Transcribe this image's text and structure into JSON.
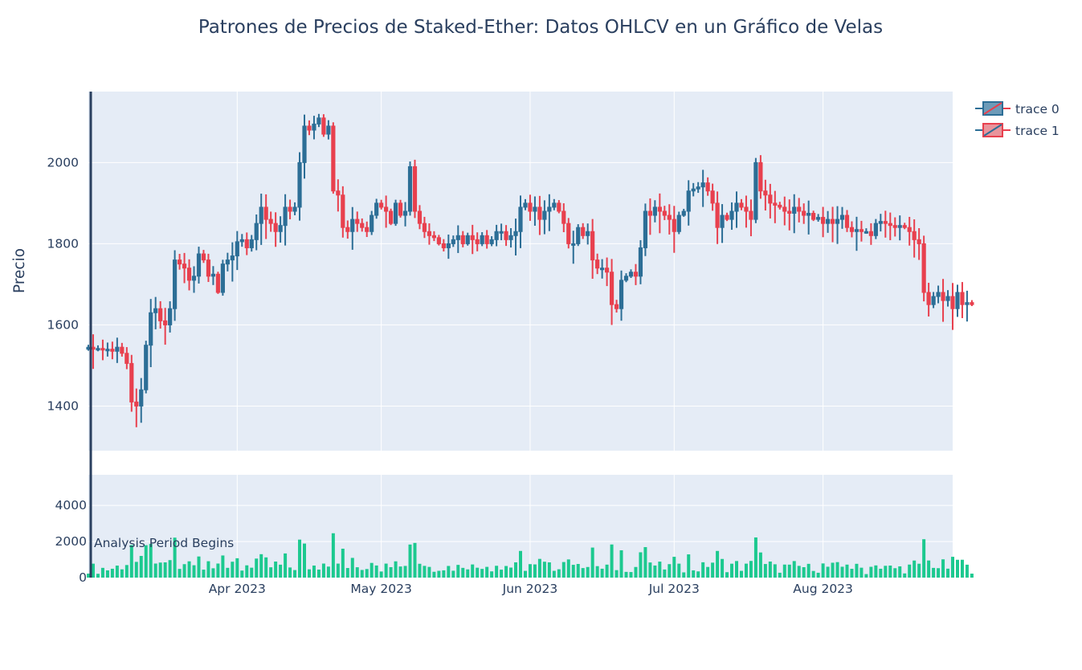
{
  "title": "Patrones de Precios de Staked-Ether: Datos OHLCV en un Gráfico de Velas",
  "ylabel": "Precio",
  "legend": [
    {
      "label": "trace 0"
    },
    {
      "label": "trace 1"
    }
  ],
  "annotation": "Analysis Period Begins",
  "colors": {
    "increasing": "#2c6e96",
    "decreasing": "#e8404e",
    "volume": "#1cc98f",
    "plot_bg": "#e5ecf6",
    "grid": "#ffffff",
    "marker_line": "#2a3f5f"
  },
  "chart_data": {
    "type": "candlestick",
    "x_range": [
      "2023-03-01",
      "2023-08-28"
    ],
    "price_yrange": [
      1290,
      2175
    ],
    "volume_yrange": [
      0,
      5700
    ],
    "price_ticks": [
      1400,
      1600,
      1800,
      2000
    ],
    "price_tick_labels": [
      "1400",
      "1600",
      "1800",
      "2000"
    ],
    "volume_ticks": [
      0,
      2000,
      4000
    ],
    "volume_tick_labels": [
      "0",
      "2000",
      "4000"
    ],
    "x_ticks": [
      {
        "date": "2023-04-01",
        "label": "Apr 2023"
      },
      {
        "date": "2023-05-01",
        "label": "May 2023"
      },
      {
        "date": "2023-06-01",
        "label": "Jun 2023"
      },
      {
        "date": "2023-07-01",
        "label": "Jul 2023"
      },
      {
        "date": "2023-08-01",
        "label": "Aug 2023"
      }
    ],
    "marker_date": "2023-03-01",
    "grid": true,
    "legend_position": "top-right",
    "start_date": "2023-03-01",
    "close": [
      1545,
      1540,
      1542,
      1538,
      1540,
      1535,
      1545,
      1530,
      1505,
      1410,
      1400,
      1440,
      1550,
      1630,
      1640,
      1610,
      1600,
      1640,
      1760,
      1750,
      1740,
      1710,
      1720,
      1775,
      1760,
      1720,
      1725,
      1680,
      1750,
      1760,
      1770,
      1805,
      1810,
      1790,
      1810,
      1850,
      1890,
      1860,
      1850,
      1830,
      1845,
      1890,
      1880,
      1890,
      2000,
      2090,
      2080,
      2095,
      2110,
      2070,
      2090,
      1930,
      1920,
      1840,
      1830,
      1860,
      1850,
      1840,
      1830,
      1870,
      1900,
      1890,
      1880,
      1850,
      1900,
      1870,
      1880,
      1990,
      1880,
      1850,
      1830,
      1820,
      1815,
      1800,
      1790,
      1800,
      1810,
      1820,
      1800,
      1820,
      1810,
      1800,
      1820,
      1800,
      1810,
      1830,
      1830,
      1810,
      1820,
      1830,
      1890,
      1900,
      1880,
      1890,
      1860,
      1880,
      1890,
      1900,
      1880,
      1850,
      1800,
      1800,
      1840,
      1820,
      1830,
      1760,
      1740,
      1740,
      1730,
      1650,
      1640,
      1710,
      1720,
      1730,
      1720,
      1790,
      1880,
      1870,
      1890,
      1880,
      1870,
      1860,
      1830,
      1870,
      1880,
      1930,
      1935,
      1940,
      1950,
      1930,
      1900,
      1840,
      1870,
      1860,
      1880,
      1900,
      1890,
      1880,
      1860,
      2000,
      1930,
      1920,
      1900,
      1895,
      1890,
      1880,
      1875,
      1890,
      1880,
      1870,
      1875,
      1860,
      1865,
      1850,
      1860,
      1850,
      1860,
      1870,
      1840,
      1830,
      1835,
      1830,
      1830,
      1820,
      1850,
      1855,
      1850,
      1845,
      1840,
      1845,
      1840,
      1830,
      1810,
      1800,
      1680,
      1650,
      1670,
      1680,
      1660,
      1670,
      1640,
      1680,
      1650,
      1655,
      1650
    ]
  }
}
